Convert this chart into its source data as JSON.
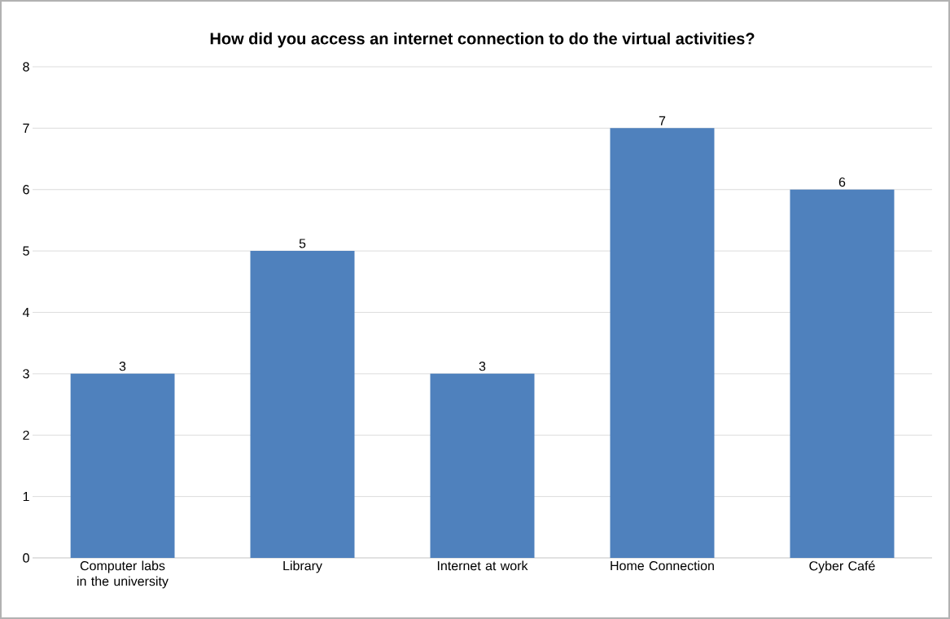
{
  "chart_data": {
    "type": "bar",
    "title": "How did you access an internet connection to do the virtual activities?",
    "categories": [
      "Computer labs in the university",
      "Library",
      "Internet at work",
      "Home Connection",
      "Cyber Café"
    ],
    "values": [
      3,
      5,
      3,
      7,
      6
    ],
    "color": "#4f81bd",
    "ylim": [
      0,
      8
    ],
    "yticks": [
      0,
      1,
      2,
      3,
      4,
      5,
      6,
      7,
      8
    ],
    "grid": "y",
    "data_labels": true
  }
}
